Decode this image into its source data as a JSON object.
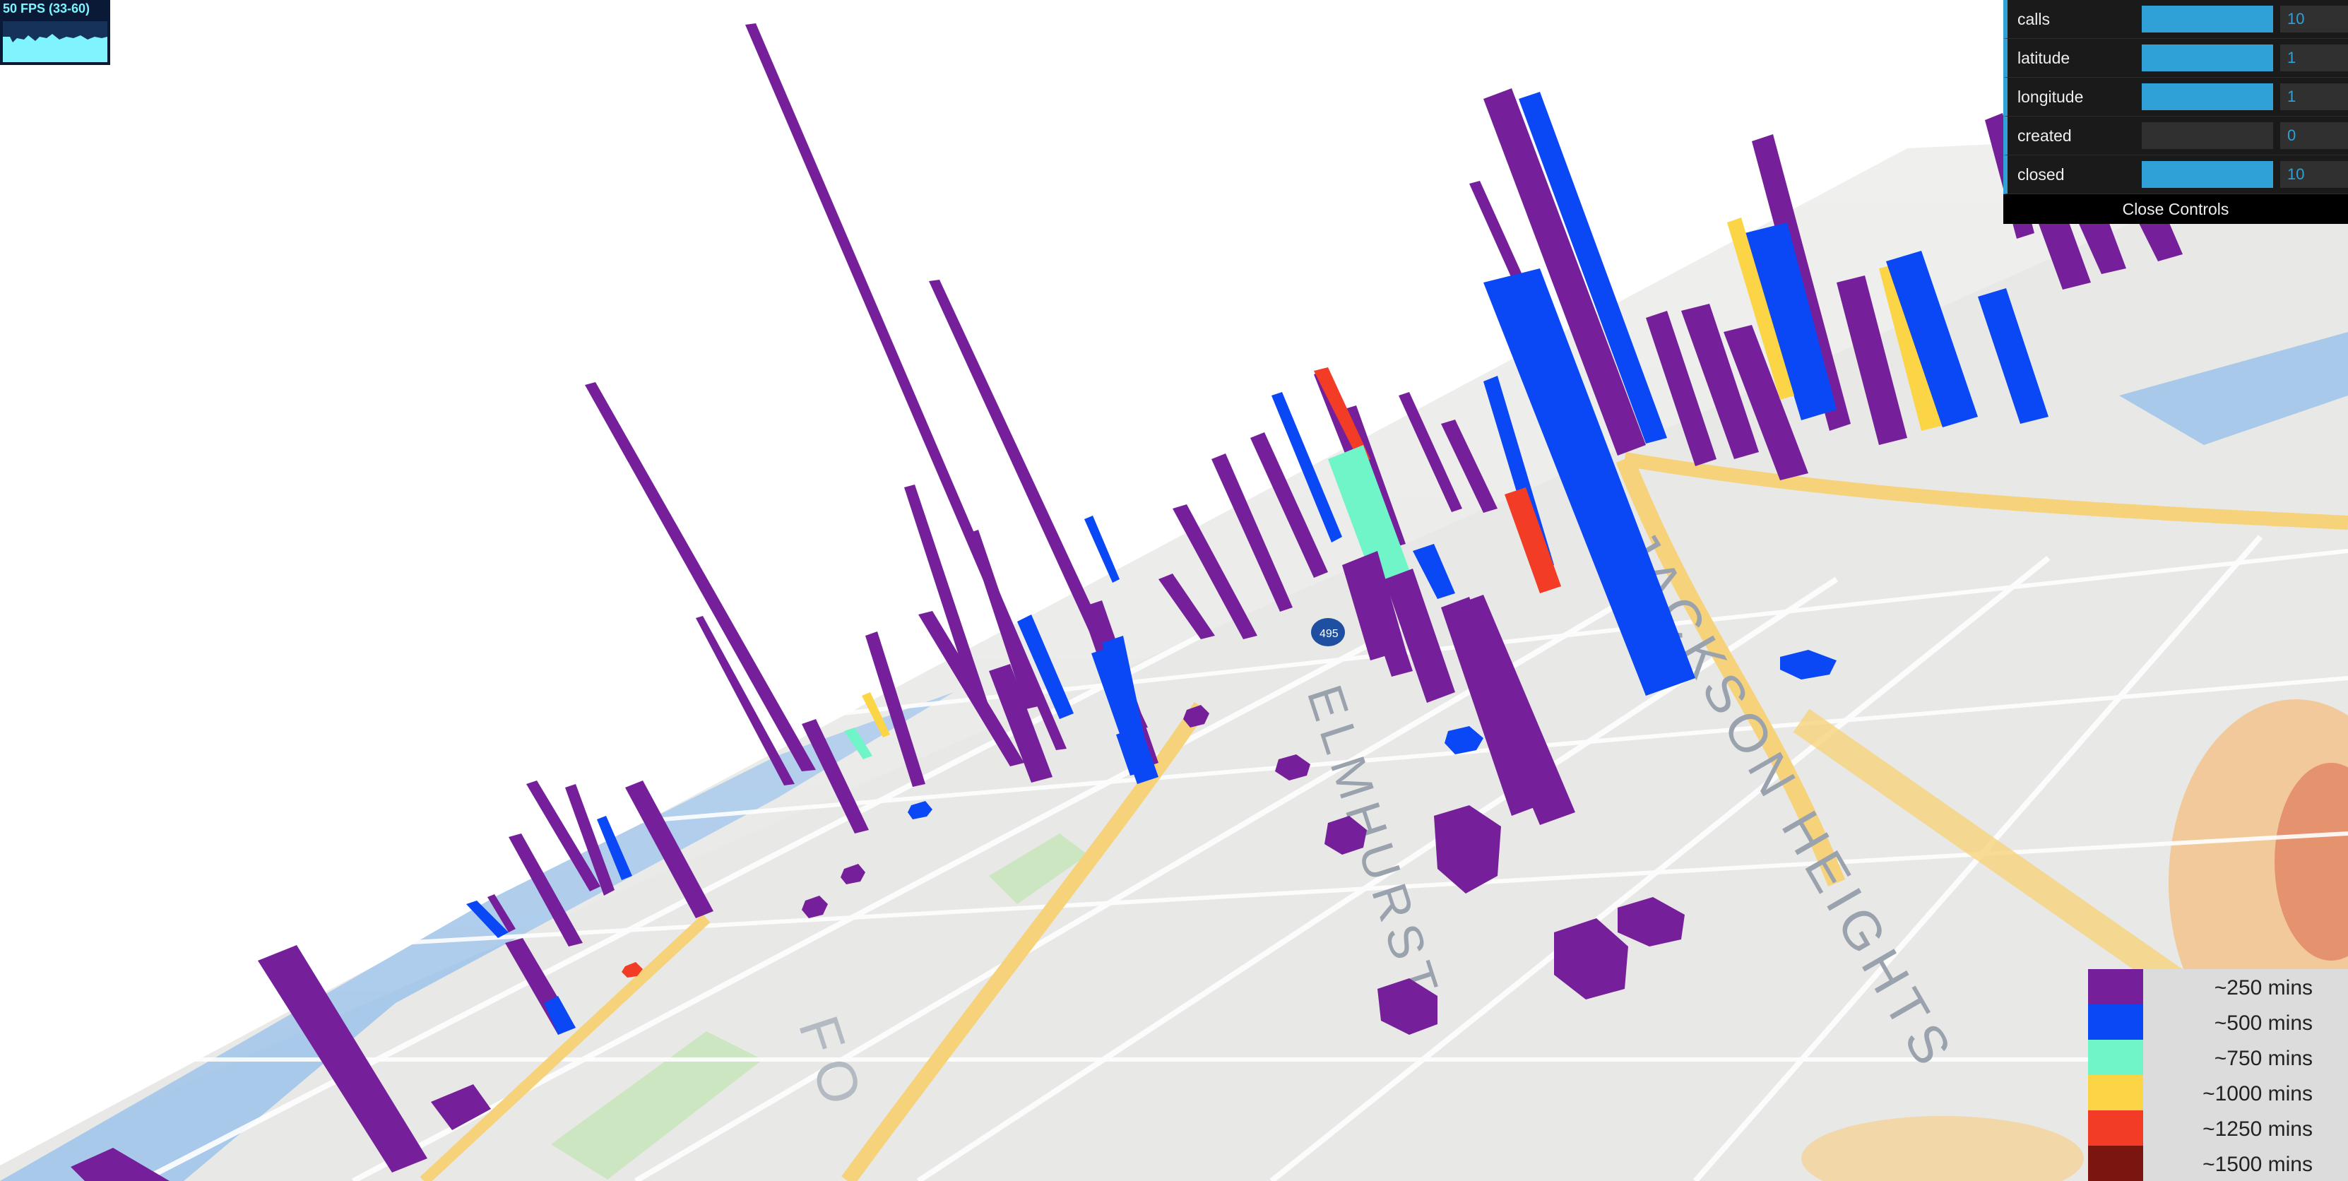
{
  "fps": {
    "label": "50 FPS (33-60)"
  },
  "controls": {
    "rows": [
      {
        "label": "calls",
        "value": "10",
        "fill": 1.0
      },
      {
        "label": "latitude",
        "value": "1",
        "fill": 1.0
      },
      {
        "label": "longitude",
        "value": "1",
        "fill": 1.0
      },
      {
        "label": "created",
        "value": "0",
        "fill": 0.0
      },
      {
        "label": "closed",
        "value": "10",
        "fill": 1.0
      }
    ],
    "close_label": "Close Controls",
    "accent": "#2fa1d6"
  },
  "legend": {
    "items": [
      {
        "label": "~250 mins",
        "color": "#75209a"
      },
      {
        "label": "~500 mins",
        "color": "#0a47f5"
      },
      {
        "label": "~750 mins",
        "color": "#6ff5c8"
      },
      {
        "label": "~1000 mins",
        "color": "#fbd545"
      },
      {
        "label": "~1250 mins",
        "color": "#f23c26"
      },
      {
        "label": "~1500 mins",
        "color": "#7b1510"
      }
    ]
  },
  "map": {
    "labels": [
      "ELMHURST",
      "JACKSON HEIGHTS",
      "FO"
    ],
    "highway_shield": "495"
  }
}
